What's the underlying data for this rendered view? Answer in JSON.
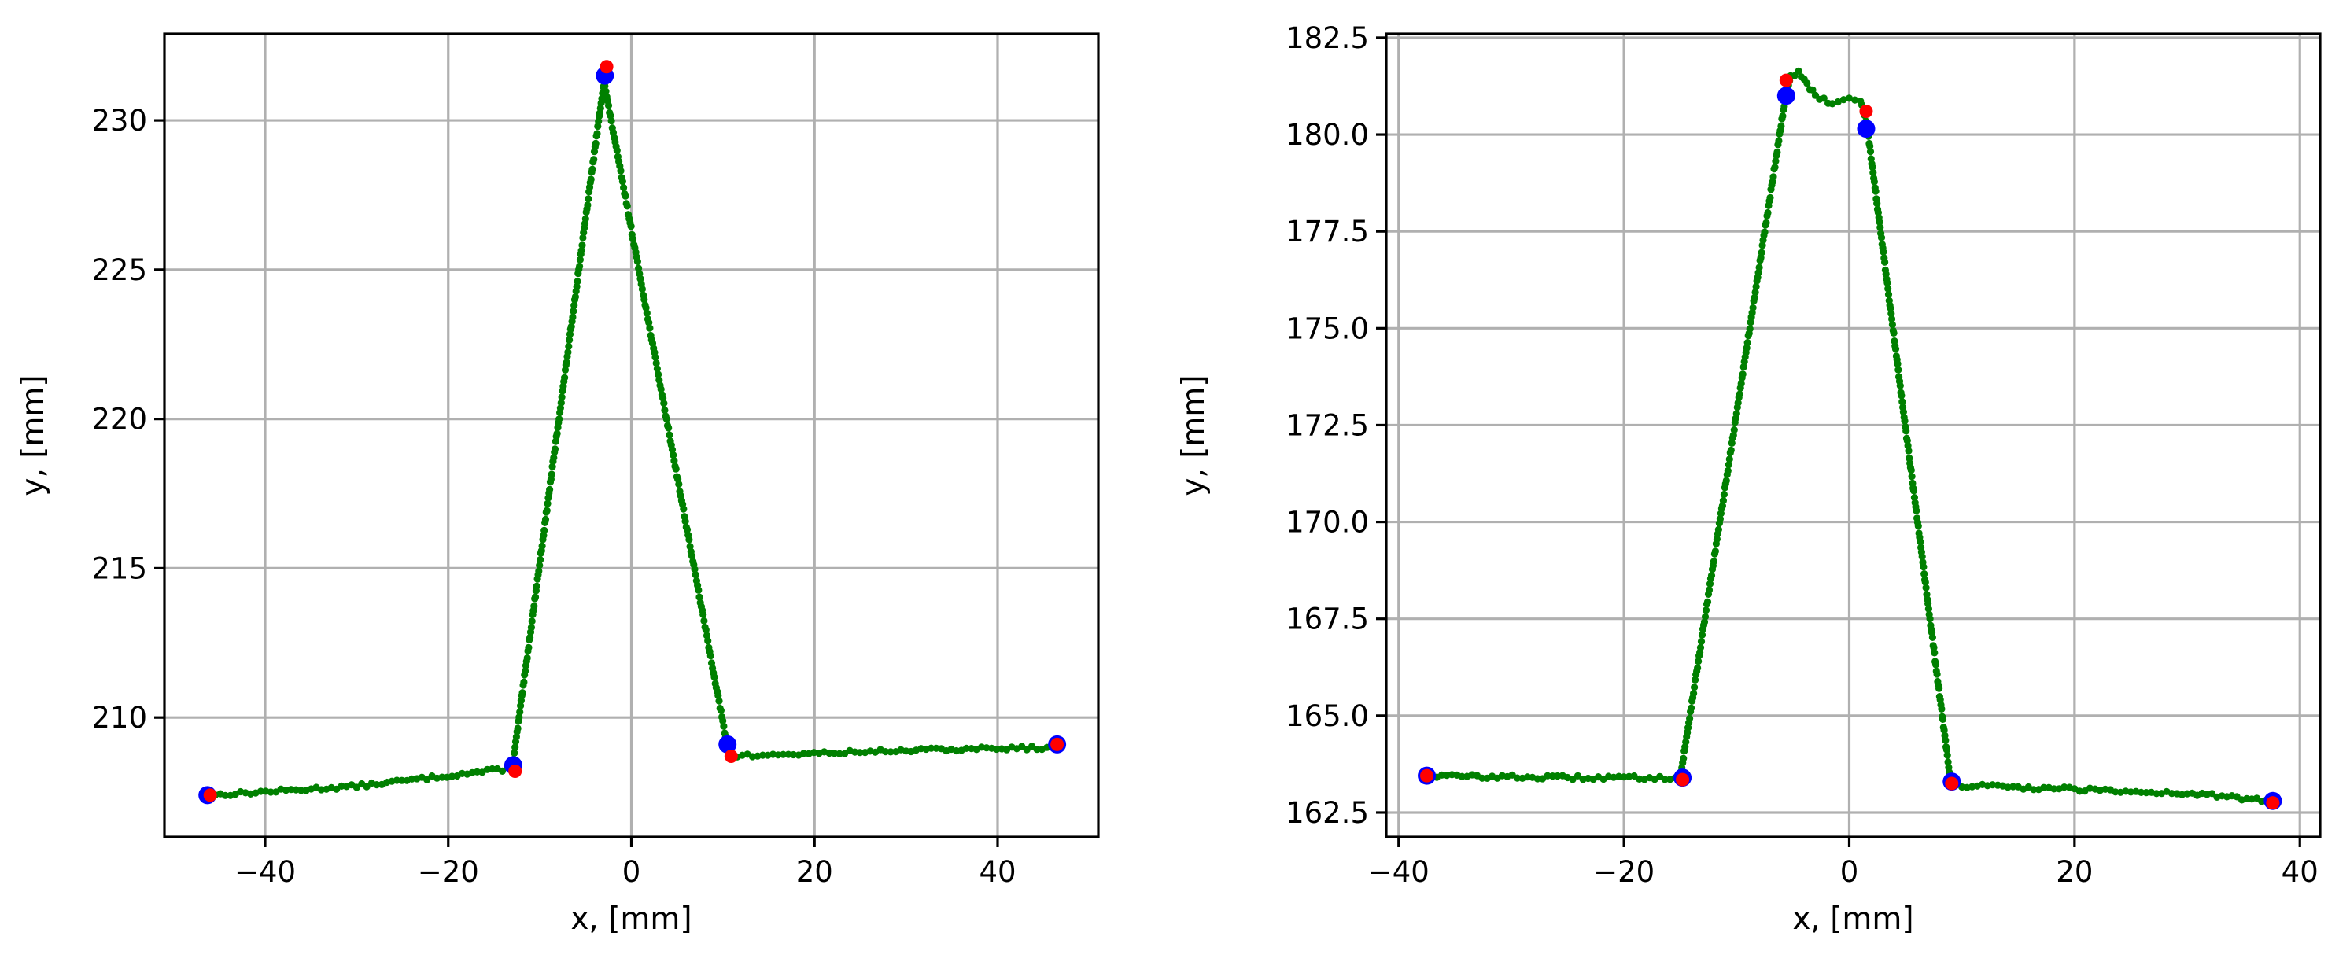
{
  "chart_data": [
    {
      "type": "scatter",
      "title": "",
      "xlabel": "x, [mm]",
      "ylabel": "y, [mm]",
      "xlim": [
        -51,
        51
      ],
      "ylim": [
        206.0,
        232.9
      ],
      "xticks": [
        -40,
        -20,
        0,
        20,
        40
      ],
      "xtick_labels": [
        "−40",
        "−20",
        "0",
        "20",
        "40"
      ],
      "yticks": [
        210,
        215,
        220,
        225,
        230
      ],
      "ytick_labels": [
        "210",
        "215",
        "220",
        "225",
        "230"
      ],
      "grid": true,
      "colors": {
        "profile": "#008000",
        "fit": "#0000ff",
        "detected": "#ff0000"
      },
      "profile_polyline": [
        [
          -46.0,
          207.4
        ],
        [
          -30.0,
          207.7
        ],
        [
          -13.0,
          208.3
        ],
        [
          -3.0,
          231.3
        ],
        [
          10.5,
          209.0
        ],
        [
          11.0,
          208.7
        ],
        [
          30.0,
          208.9
        ],
        [
          46.5,
          209.0
        ]
      ],
      "profile_noise": 0.06,
      "blue_points": [
        [
          -46.3,
          207.4
        ],
        [
          -12.9,
          208.4
        ],
        [
          -2.9,
          231.5
        ],
        [
          10.5,
          209.1
        ],
        [
          46.5,
          209.1
        ]
      ],
      "red_points": [
        [
          -46.0,
          207.4
        ],
        [
          -12.7,
          208.2
        ],
        [
          -2.7,
          231.8
        ],
        [
          10.9,
          208.7
        ],
        [
          46.5,
          209.1
        ]
      ]
    },
    {
      "type": "scatter",
      "title": "",
      "xlabel": "x, [mm]",
      "ylabel": "y, [mm]",
      "xlim": [
        -41.1,
        41.8
      ],
      "ylim": [
        161.87,
        182.6
      ],
      "xticks": [
        -40,
        -20,
        0,
        20,
        40
      ],
      "xtick_labels": [
        "−40",
        "−20",
        "0",
        "20",
        "40"
      ],
      "yticks": [
        162.5,
        165.0,
        167.5,
        170.0,
        172.5,
        175.0,
        177.5,
        180.0,
        182.5
      ],
      "ytick_labels": [
        "162.5",
        "165.0",
        "167.5",
        "170.0",
        "172.5",
        "175.0",
        "177.5",
        "180.0",
        "182.5"
      ],
      "grid": true,
      "colors": {
        "profile": "#008000",
        "fit": "#0000ff",
        "detected": "#ff0000"
      },
      "profile_polyline": [
        [
          -37.5,
          163.45
        ],
        [
          -25.0,
          163.4
        ],
        [
          -15.0,
          163.4
        ],
        [
          -5.7,
          180.9
        ],
        [
          -5.2,
          181.5
        ],
        [
          -4.5,
          181.6
        ],
        [
          -3.0,
          181.0
        ],
        [
          -1.5,
          180.8
        ],
        [
          0.0,
          180.95
        ],
        [
          1.0,
          180.9
        ],
        [
          1.6,
          180.2
        ],
        [
          9.0,
          163.3
        ],
        [
          10.0,
          163.2
        ],
        [
          20.0,
          163.1
        ],
        [
          30.0,
          163.0
        ],
        [
          37.5,
          162.8
        ]
      ],
      "profile_noise": 0.05,
      "blue_points": [
        [
          -37.5,
          163.45
        ],
        [
          -14.8,
          163.4
        ],
        [
          -5.6,
          181.0
        ],
        [
          1.5,
          180.15
        ],
        [
          9.1,
          163.3
        ],
        [
          37.6,
          162.8
        ]
      ],
      "red_points": [
        [
          -37.5,
          163.45
        ],
        [
          -14.8,
          163.35
        ],
        [
          -5.6,
          181.4
        ],
        [
          1.5,
          180.6
        ],
        [
          9.1,
          163.25
        ],
        [
          37.6,
          162.75
        ]
      ]
    }
  ]
}
